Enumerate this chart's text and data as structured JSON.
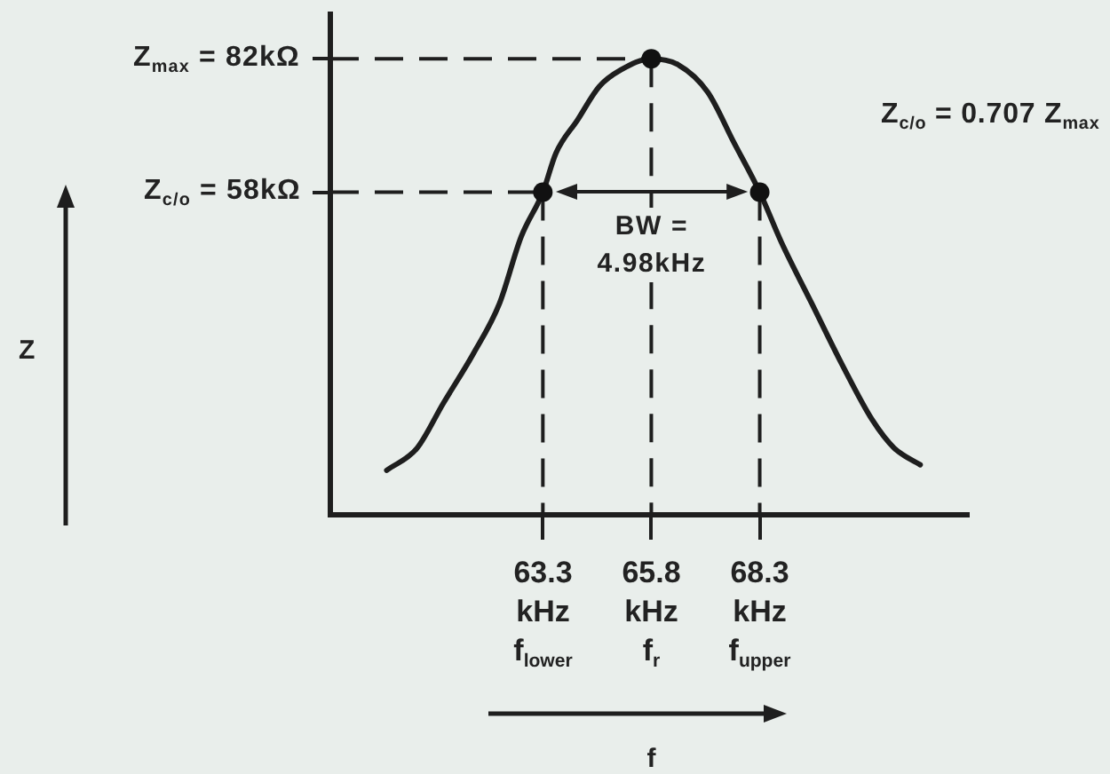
{
  "chart_data": {
    "type": "line",
    "xlabel": "f",
    "ylabel": "Z",
    "annotations": [
      "Z$_{c/o}$ = 0.707 Z$_{max}$",
      {
        "text": "BW =\n4.98kHz",
        "x": 65.8,
        "y": 58
      }
    ],
    "xlim": [
      58.4,
      73.1
    ],
    "xticks": [
      {
        "value": 63.3,
        "label": "63.3\nkHz\nf$_{lower}$"
      },
      {
        "value": 65.8,
        "label": "65.8\nkHz\nf$_{r}$"
      },
      {
        "value": 68.3,
        "label": "68.3\nkHz\nf$_{upper}$"
      }
    ],
    "ylim": [
      0,
      90
    ],
    "yticks": [
      {
        "value": 58,
        "label": "Z$_{c/o}$ = 58kΩ"
      },
      {
        "value": 82,
        "label": "Z$_{max}$ = 82kΩ"
      }
    ],
    "ref_lines": [
      {
        "axis": "y",
        "value": 82,
        "line_style": "dashed"
      },
      {
        "axis": "y",
        "value": 58,
        "line_style": "dashed"
      },
      {
        "axis": "x",
        "value": 63.3,
        "line_style": "dashed"
      },
      {
        "axis": "x",
        "value": 65.8,
        "line_style": "dashed"
      },
      {
        "axis": "x",
        "value": 68.3,
        "line_style": "dashed"
      }
    ],
    "series": [
      {
        "type": "line",
        "color": "#1e1e1e",
        "marker": "none",
        "x": [
          59.7,
          60.4,
          61.0,
          61.7,
          62.3,
          62.8,
          63.3,
          63.6,
          64.1,
          64.6,
          65.1,
          65.8,
          66.4,
          67.1,
          67.7,
          68.3,
          68.8,
          69.5,
          70.2,
          70.9,
          71.4,
          72.0
        ],
        "values": [
          8,
          12,
          20,
          29,
          38,
          50,
          58,
          65,
          71,
          77,
          80,
          82,
          81,
          76,
          67,
          58,
          49,
          38,
          27,
          17,
          12,
          9
        ]
      },
      {
        "type": "scatter",
        "color": "#111111",
        "marker": "circle",
        "x": [
          63.3,
          65.8,
          68.3
        ],
        "values": [
          58,
          82,
          58
        ]
      }
    ]
  }
}
